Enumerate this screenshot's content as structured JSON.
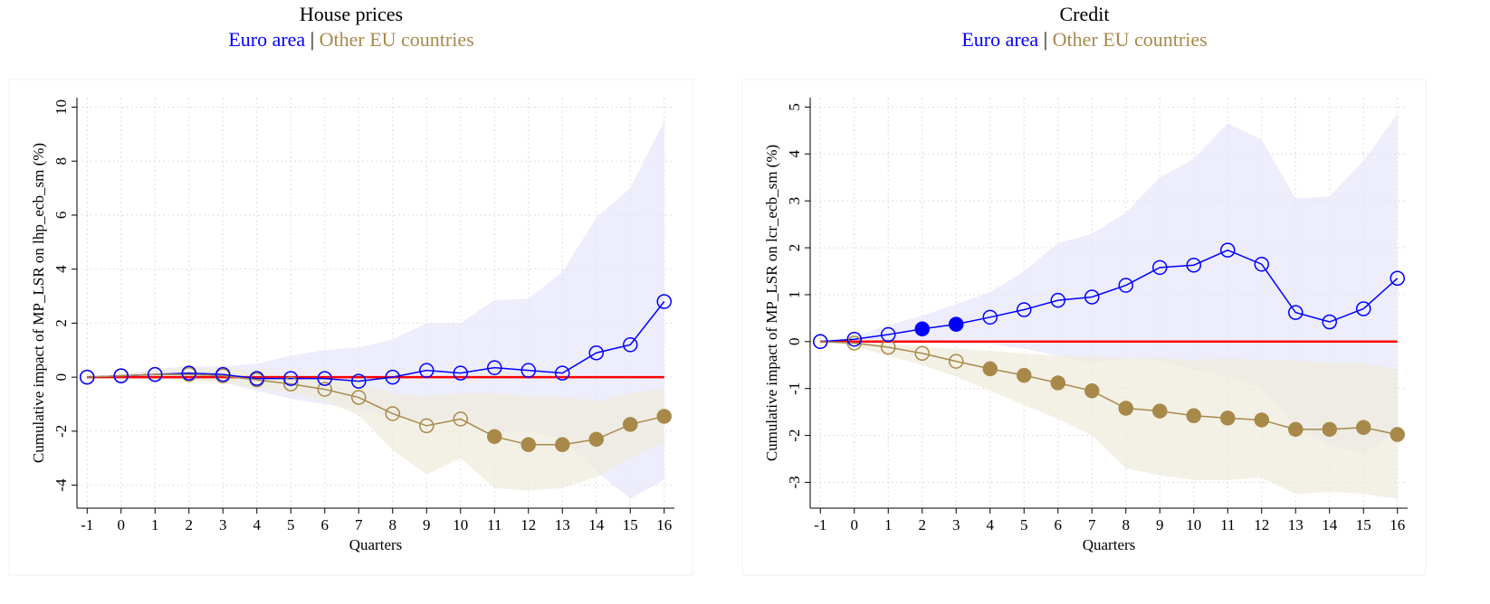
{
  "chart_data": [
    {
      "type": "line",
      "title": "House prices",
      "legend_separator": "|",
      "y_label": "Cumulative impact of MP_LSR on lhp_ecb_sm (%)",
      "x_label": "Quarters",
      "x": [
        -1,
        0,
        1,
        2,
        3,
        4,
        5,
        6,
        7,
        8,
        9,
        10,
        11,
        12,
        13,
        14,
        15,
        16
      ],
      "xlim": [
        -1.3,
        16.3
      ],
      "xticks": [
        -1,
        0,
        1,
        2,
        3,
        4,
        5,
        6,
        7,
        8,
        9,
        10,
        11,
        12,
        13,
        14,
        15,
        16
      ],
      "ylim": [
        -4.85,
        10.35
      ],
      "yticks": [
        -4,
        -2,
        0,
        2,
        4,
        6,
        8,
        10
      ],
      "grid": true,
      "hline": 0,
      "hline_color": "#ff0000",
      "series": [
        {
          "name": "Euro area",
          "color": "#0000ff",
          "band_color": "#e6e6fb",
          "values": [
            0,
            0.05,
            0.1,
            0.15,
            0.1,
            -0.05,
            -0.05,
            -0.05,
            -0.15,
            0,
            0.25,
            0.15,
            0.35,
            0.25,
            0.15,
            0.9,
            1.2,
            2.8
          ],
          "upper": [
            0,
            0.1,
            0.3,
            0.4,
            0.4,
            0.5,
            0.8,
            1.0,
            1.1,
            1.4,
            2.0,
            2.0,
            2.85,
            2.9,
            3.9,
            5.9,
            7.0,
            9.5
          ],
          "lower": [
            0,
            0,
            -0.1,
            -0.1,
            -0.2,
            -0.5,
            -0.8,
            -1.0,
            -1.2,
            -1.5,
            -1.6,
            -1.6,
            -2.0,
            -2.0,
            -2.3,
            -3.5,
            -4.5,
            -3.8
          ],
          "filled": [
            false,
            false,
            false,
            false,
            false,
            false,
            false,
            false,
            false,
            false,
            false,
            false,
            false,
            false,
            false,
            false,
            false,
            false
          ]
        },
        {
          "name": "Other EU countries",
          "color": "#a8894a",
          "band_color": "#eeebdc",
          "values": [
            0,
            0.05,
            0.1,
            0.1,
            0.05,
            -0.1,
            -0.25,
            -0.45,
            -0.75,
            -1.35,
            -1.8,
            -1.55,
            -2.2,
            -2.5,
            -2.5,
            -2.3,
            -1.75,
            -1.45
          ],
          "upper": [
            0,
            0.1,
            0.2,
            0.3,
            0.3,
            0.2,
            0,
            -0.1,
            -0.2,
            -0.6,
            -0.7,
            -0.6,
            -0.6,
            -0.7,
            -0.7,
            -0.9,
            -0.6,
            -0.4
          ],
          "lower": [
            0,
            0,
            -0.05,
            -0.1,
            -0.2,
            -0.4,
            -0.6,
            -0.9,
            -1.4,
            -2.7,
            -3.6,
            -3.0,
            -4.1,
            -4.2,
            -4.1,
            -3.7,
            -3.0,
            -2.4
          ],
          "filled": [
            false,
            false,
            false,
            false,
            false,
            false,
            false,
            false,
            false,
            false,
            false,
            false,
            true,
            true,
            true,
            true,
            true,
            true
          ]
        }
      ]
    },
    {
      "type": "line",
      "title": "Credit",
      "legend_separator": "|",
      "y_label": "Cumulative impact of MP_LSR on lcr_ecb_sm (%)",
      "x_label": "Quarters",
      "x": [
        -1,
        0,
        1,
        2,
        3,
        4,
        5,
        6,
        7,
        8,
        9,
        10,
        11,
        12,
        13,
        14,
        15,
        16
      ],
      "xlim": [
        -1.3,
        16.3
      ],
      "xticks": [
        -1,
        0,
        1,
        2,
        3,
        4,
        5,
        6,
        7,
        8,
        9,
        10,
        11,
        12,
        13,
        14,
        15,
        16
      ],
      "ylim": [
        -3.55,
        5.2
      ],
      "yticks": [
        -3,
        -2,
        -1,
        0,
        1,
        2,
        3,
        4,
        5
      ],
      "grid": true,
      "hline": 0,
      "hline_color": "#ff0000",
      "series": [
        {
          "name": "Euro area",
          "color": "#0000ff",
          "band_color": "#e6e6fb",
          "values": [
            0,
            0.05,
            0.15,
            0.27,
            0.37,
            0.52,
            0.68,
            0.88,
            0.95,
            1.2,
            1.58,
            1.63,
            1.95,
            1.65,
            0.62,
            0.42,
            0.7,
            1.35
          ],
          "upper": [
            0,
            0.1,
            0.35,
            0.55,
            0.8,
            1.05,
            1.5,
            2.1,
            2.3,
            2.75,
            3.5,
            3.9,
            4.65,
            4.3,
            3.05,
            3.1,
            3.85,
            4.85
          ],
          "lower": [
            0,
            0,
            -0.05,
            0,
            -0.05,
            -0.05,
            -0.15,
            -0.3,
            -0.45,
            -0.35,
            -0.4,
            -0.6,
            -0.75,
            -1.0,
            -1.8,
            -2.2,
            -2.4,
            -1.9
          ],
          "filled": [
            false,
            false,
            false,
            true,
            true,
            false,
            false,
            false,
            false,
            false,
            false,
            false,
            false,
            false,
            false,
            false,
            false,
            false
          ]
        },
        {
          "name": "Other EU countries",
          "color": "#a8894a",
          "band_color": "#eeebdc",
          "values": [
            0,
            -0.03,
            -0.12,
            -0.25,
            -0.42,
            -0.58,
            -0.72,
            -0.88,
            -1.05,
            -1.42,
            -1.48,
            -1.58,
            -1.63,
            -1.67,
            -1.87,
            -1.87,
            -1.83,
            -1.98
          ],
          "upper": [
            0,
            0,
            -0.05,
            -0.1,
            -0.15,
            -0.2,
            -0.25,
            -0.3,
            -0.3,
            -0.35,
            -0.35,
            -0.4,
            -0.35,
            -0.4,
            -0.4,
            -0.45,
            -0.45,
            -0.6
          ],
          "lower": [
            0,
            -0.1,
            -0.3,
            -0.5,
            -0.75,
            -1.05,
            -1.35,
            -1.65,
            -2.0,
            -2.7,
            -2.85,
            -2.95,
            -2.95,
            -2.9,
            -3.25,
            -3.2,
            -3.25,
            -3.35
          ],
          "filled": [
            false,
            false,
            false,
            false,
            false,
            true,
            true,
            true,
            true,
            true,
            true,
            true,
            true,
            true,
            true,
            true,
            true,
            true
          ]
        }
      ]
    }
  ]
}
